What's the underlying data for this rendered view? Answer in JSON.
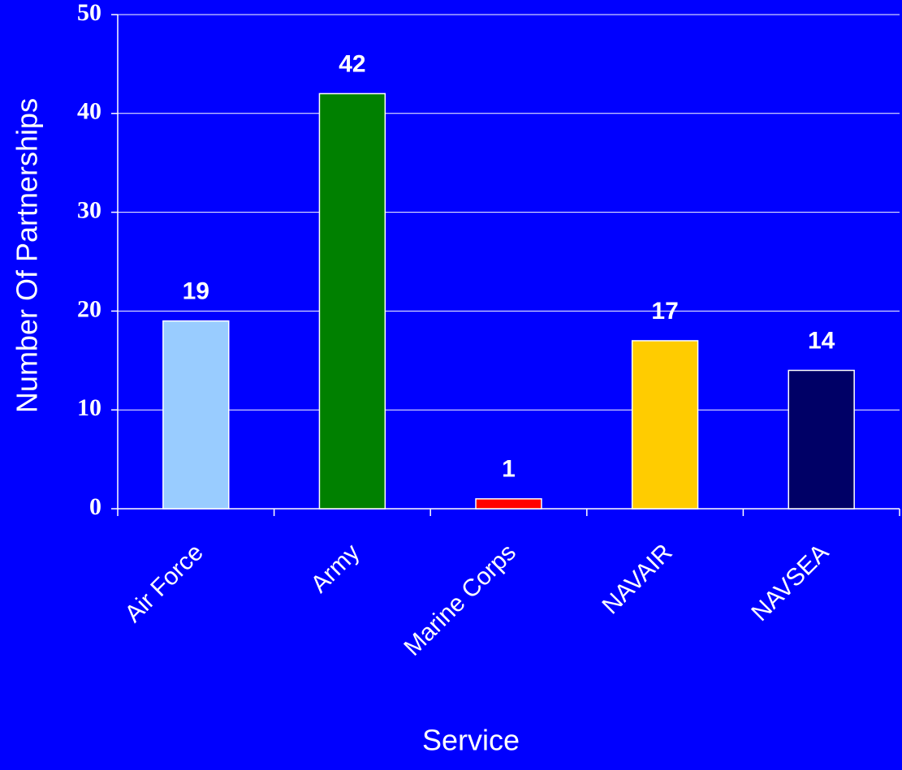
{
  "chart_data": {
    "type": "bar",
    "xlabel": "Service",
    "ylabel": "Number Of Partnerships",
    "categories": [
      "Air Force",
      "Army",
      "Marine Corps",
      "NAVAIR",
      "NAVSEA"
    ],
    "values": [
      19,
      42,
      1,
      17,
      14
    ],
    "colors": [
      "#99ccff",
      "#008000",
      "#ff0000",
      "#ffcc00",
      "#000066"
    ],
    "background": "#0000ff",
    "ylim": [
      0,
      50
    ],
    "yticks": [
      0,
      10,
      20,
      30,
      40,
      50
    ],
    "grid": true
  }
}
